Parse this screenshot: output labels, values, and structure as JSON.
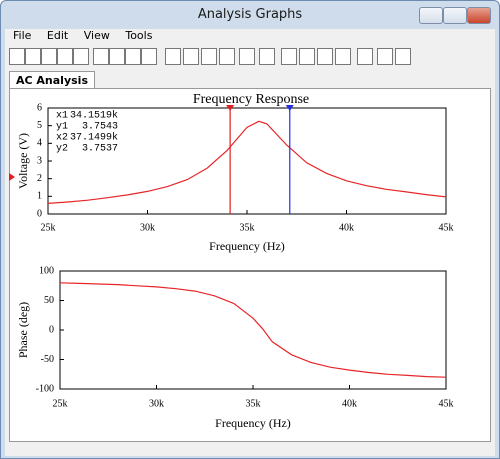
{
  "window": {
    "title": "Analysis Graphs",
    "menu": [
      "File",
      "Edit",
      "View",
      "Tools"
    ],
    "tab": "AC Analysis"
  },
  "chart_data": [
    {
      "type": "line",
      "title": "Frequency Response",
      "x_label": "Frequency (Hz)",
      "y_label": "Voltage (V)",
      "x": [
        25000,
        26000,
        27000,
        28000,
        29000,
        30000,
        31000,
        32000,
        33000,
        34000,
        35000,
        35600,
        36000,
        37000,
        38000,
        39000,
        40000,
        41000,
        42000,
        43000,
        44000,
        45000
      ],
      "values": [
        0.6,
        0.68,
        0.78,
        0.92,
        1.08,
        1.28,
        1.55,
        1.95,
        2.6,
        3.6,
        4.9,
        5.25,
        5.1,
        3.9,
        2.9,
        2.3,
        1.88,
        1.6,
        1.4,
        1.25,
        1.1,
        0.97
      ],
      "color": "#e8262a",
      "xlim": [
        25000,
        45000
      ],
      "xticks": [
        {
          "value": 25000,
          "label": "25k"
        },
        {
          "value": 30000,
          "label": "30k"
        },
        {
          "value": 35000,
          "label": "35k"
        },
        {
          "value": 40000,
          "label": "40k"
        },
        {
          "value": 45000,
          "label": "45k"
        }
      ],
      "ylim": [
        0,
        6
      ],
      "yticks": [
        0,
        1,
        2,
        3,
        4,
        5,
        6
      ],
      "grid": false,
      "cursors": [
        {
          "x_name": "x1",
          "x": {
            "value": 34151.9,
            "label": "34.1519k"
          },
          "y_name": "y1",
          "y": 3.7543,
          "color": "#e02020"
        },
        {
          "x_name": "x2",
          "x": {
            "value": 37149.9,
            "label": "37.1499k"
          },
          "y_name": "y2",
          "y": 3.7537,
          "color": "#2030e0"
        }
      ]
    },
    {
      "type": "line",
      "x_label": "Frequency (Hz)",
      "y_label": "Phase (deg)",
      "x": [
        25000,
        26000,
        27000,
        28000,
        29000,
        30000,
        31000,
        32000,
        33000,
        34000,
        35000,
        35500,
        36000,
        37000,
        38000,
        39000,
        40000,
        41000,
        42000,
        43000,
        44000,
        45000
      ],
      "values": [
        80,
        79,
        78,
        77,
        75,
        73,
        70,
        66,
        58,
        45,
        20,
        2,
        -20,
        -42,
        -55,
        -63,
        -68,
        -72,
        -75,
        -77,
        -79,
        -80
      ],
      "color": "#e8262a",
      "xlim": [
        25000,
        45000
      ],
      "xticks": [
        {
          "value": 25000,
          "label": "25k"
        },
        {
          "value": 30000,
          "label": "30k"
        },
        {
          "value": 35000,
          "label": "35k"
        },
        {
          "value": 40000,
          "label": "40k"
        },
        {
          "value": 45000,
          "label": "45k"
        }
      ],
      "ylim": [
        -100,
        100
      ],
      "yticks": [
        -100,
        -50,
        0,
        50,
        100
      ],
      "grid": false
    }
  ]
}
